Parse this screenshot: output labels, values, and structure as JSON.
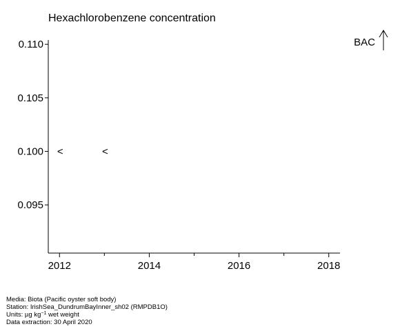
{
  "chart_data": {
    "type": "scatter",
    "title": "Hexachlorobenzene concentration",
    "xlabel": "",
    "ylabel": "",
    "xlim": [
      2011.75,
      2018.25
    ],
    "ylim": [
      0.0905,
      0.1104
    ],
    "x_ticks": [
      2012,
      2014,
      2016,
      2018
    ],
    "x_minor_ticks": [
      2013,
      2015,
      2017
    ],
    "x_tick_labels": [
      "2012",
      "2014",
      "2016",
      "2018"
    ],
    "y_ticks": [
      0.095,
      0.1,
      0.105,
      0.11
    ],
    "y_tick_labels": [
      "0.095",
      "0.100",
      "0.105",
      "0.110"
    ],
    "grid": false,
    "series": [
      {
        "marker": "<",
        "x": [
          2012,
          2013
        ],
        "y": [
          0.1,
          0.1
        ]
      }
    ],
    "annotations": [
      {
        "text": "BAC",
        "arrow": "up",
        "position": "top-right"
      }
    ]
  },
  "footer": {
    "media": "Media: Biota (Pacific oyster soft body)",
    "station": "Station: IrishSea_DundrumBayInner_sh02 (RMPDB1O)",
    "units_prefix": "Units:  µg kg",
    "units_sup": "−1",
    "units_suffix": " wet weight",
    "extraction": "Data extraction: 30 April 2020"
  }
}
